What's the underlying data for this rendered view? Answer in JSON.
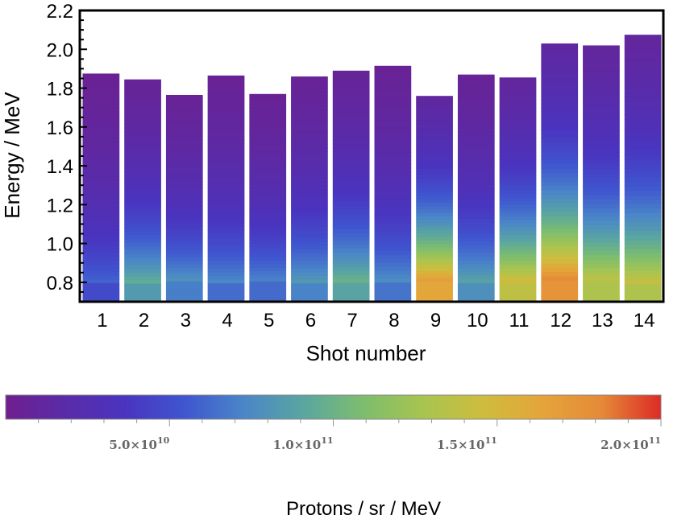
{
  "chart_data": {
    "type": "heatmap",
    "title": "",
    "xlabel": "Shot number",
    "ylabel": "Energy / MeV",
    "ylim": [
      0.7,
      2.2
    ],
    "y_ticks": [
      "0.8",
      "1.0",
      "1.2",
      "1.4",
      "1.6",
      "1.8",
      "2.0",
      "2.2"
    ],
    "categories": [
      "1",
      "2",
      "3",
      "4",
      "5",
      "6",
      "7",
      "8",
      "9",
      "10",
      "11",
      "12",
      "13",
      "14"
    ],
    "max_energy_mev": [
      1.875,
      1.845,
      1.765,
      1.865,
      1.77,
      1.86,
      1.89,
      1.915,
      1.76,
      1.87,
      1.855,
      2.03,
      2.02,
      2.075
    ],
    "protons_at_0_8_mev": [
      48000000000.0,
      84000000000.0,
      70000000000.0,
      63000000000.0,
      62000000000.0,
      72000000000.0,
      90000000000.0,
      66000000000.0,
      162000000000.0,
      78000000000.0,
      138000000000.0,
      175000000000.0,
      130000000000.0,
      130000000000.0
    ],
    "colorbar": {
      "title": "Protons  / sr / MeV",
      "range": [
        0,
        200000000000.0
      ],
      "ticks": [
        {
          "value": 50000000000.0,
          "mantissa": "5.0",
          "times": "×",
          "base": "10",
          "exponent": "10"
        },
        {
          "value": 100000000000.0,
          "mantissa": "1.0",
          "times": "×",
          "base": "10",
          "exponent": "11"
        },
        {
          "value": 150000000000.0,
          "mantissa": "1.5",
          "times": "×",
          "base": "10",
          "exponent": "11"
        },
        {
          "value": 200000000000.0,
          "mantissa": "2.0",
          "times": "×",
          "base": "10",
          "exponent": "11"
        }
      ],
      "colors": [
        "#6e1f8f",
        "#5a2ba8",
        "#4a34bf",
        "#3f56cf",
        "#4a86c8",
        "#5aa6a0",
        "#7dbd6e",
        "#a8c450",
        "#cdbd3e",
        "#e5a43a",
        "#e58a38",
        "#dd2a26"
      ]
    }
  }
}
